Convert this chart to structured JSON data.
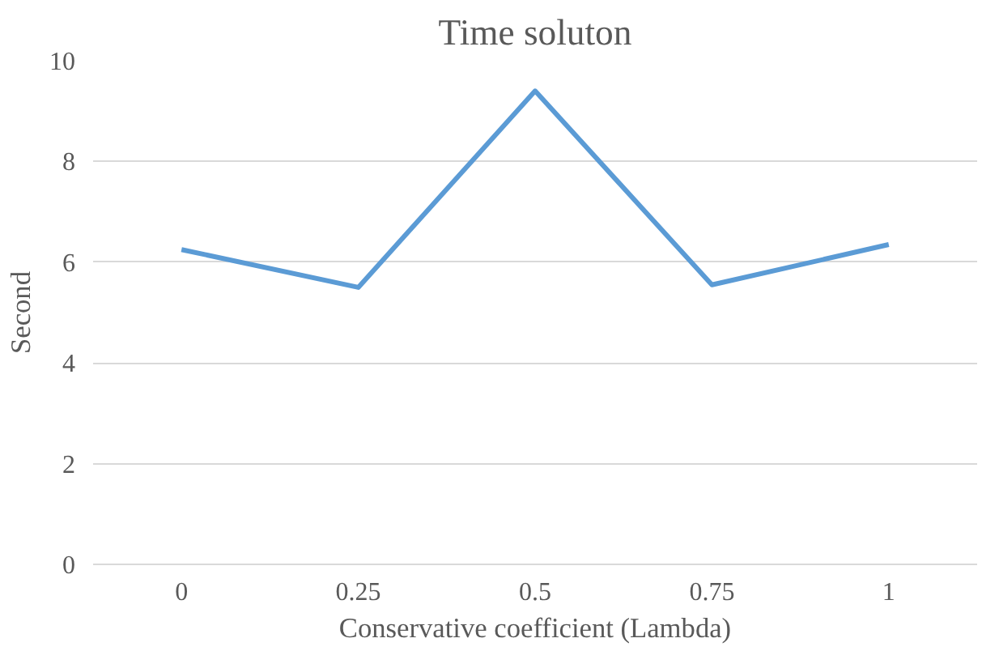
{
  "chart_data": {
    "type": "line",
    "title": "Time soluton",
    "xlabel": "Conservative coefficient (Lambda)",
    "ylabel": "Second",
    "categories": [
      "0",
      "0.25",
      "0.5",
      "0.75",
      "1"
    ],
    "series": [
      {
        "color": "#5b9bd5",
        "values": [
          6.25,
          5.5,
          9.4,
          5.55,
          6.35
        ]
      }
    ],
    "ylim": [
      0,
      10
    ],
    "yticks": [
      0,
      2,
      4,
      6,
      8,
      10
    ],
    "grid": "y",
    "marker": "none",
    "line_style": "solid"
  }
}
